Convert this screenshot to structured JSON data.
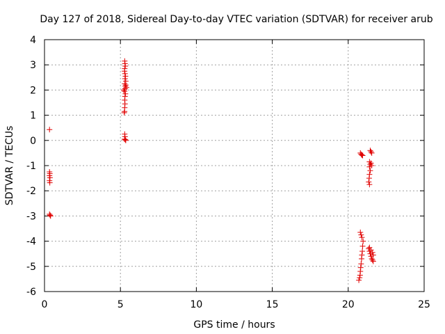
{
  "chart_data": {
    "type": "scatter",
    "title": "Day 127 of 2018, Sidereal Day-to-day VTEC variation (SDTVAR) for receiver arub",
    "xlabel": "GPS time / hours",
    "ylabel": "SDTVAR / TECUs",
    "xlim": [
      0,
      25
    ],
    "ylim": [
      -6,
      4
    ],
    "xticks": [
      "0",
      "5",
      "10",
      "15",
      "20",
      "25"
    ],
    "yticks": [
      "-6",
      "-5",
      "-4",
      "-3",
      "-2",
      "-1",
      "0",
      "1",
      "2",
      "3",
      "4"
    ],
    "grid": true,
    "marker": "+",
    "color": "#e00000",
    "series": [
      {
        "name": "SDTVAR",
        "points": [
          [
            0.33,
            0.43
          ],
          [
            0.33,
            -1.25
          ],
          [
            0.35,
            -1.32
          ],
          [
            0.33,
            -1.4
          ],
          [
            0.36,
            -1.48
          ],
          [
            0.33,
            -1.6
          ],
          [
            0.35,
            -1.68
          ],
          [
            0.33,
            -2.93
          ],
          [
            0.37,
            -2.97
          ],
          [
            0.4,
            -3.0
          ],
          [
            5.28,
            3.15
          ],
          [
            5.3,
            3.05
          ],
          [
            5.32,
            2.95
          ],
          [
            5.28,
            2.85
          ],
          [
            5.27,
            2.75
          ],
          [
            5.3,
            2.65
          ],
          [
            5.33,
            2.55
          ],
          [
            5.3,
            2.45
          ],
          [
            5.35,
            2.35
          ],
          [
            5.28,
            2.25
          ],
          [
            5.32,
            2.15
          ],
          [
            5.3,
            2.05
          ],
          [
            5.27,
            1.95
          ],
          [
            5.33,
            1.85
          ],
          [
            5.3,
            1.75
          ],
          [
            5.28,
            1.6
          ],
          [
            5.3,
            1.45
          ],
          [
            5.28,
            1.3
          ],
          [
            5.27,
            1.15
          ],
          [
            5.25,
            1.1
          ],
          [
            5.35,
            2.2
          ],
          [
            5.4,
            2.1
          ],
          [
            5.22,
            2.0
          ],
          [
            5.28,
            0.25
          ],
          [
            5.3,
            0.15
          ],
          [
            5.27,
            0.05
          ],
          [
            5.32,
            0.03
          ],
          [
            5.35,
            0.0
          ],
          [
            20.8,
            -0.5
          ],
          [
            20.85,
            -0.55
          ],
          [
            20.9,
            -0.58
          ],
          [
            20.95,
            -0.6
          ],
          [
            21.45,
            -0.4
          ],
          [
            21.5,
            -0.45
          ],
          [
            21.55,
            -0.5
          ],
          [
            21.4,
            -0.85
          ],
          [
            21.45,
            -0.95
          ],
          [
            21.4,
            -1.05
          ],
          [
            21.45,
            -1.2
          ],
          [
            21.4,
            -1.35
          ],
          [
            21.38,
            -1.5
          ],
          [
            21.35,
            -1.65
          ],
          [
            21.4,
            -1.75
          ],
          [
            21.5,
            -0.9
          ],
          [
            21.55,
            -1.0
          ],
          [
            20.7,
            -5.55
          ],
          [
            20.75,
            -5.45
          ],
          [
            20.78,
            -5.35
          ],
          [
            20.8,
            -5.2
          ],
          [
            20.82,
            -5.05
          ],
          [
            20.85,
            -4.9
          ],
          [
            20.88,
            -4.7
          ],
          [
            20.9,
            -4.55
          ],
          [
            20.93,
            -4.4
          ],
          [
            20.95,
            -4.2
          ],
          [
            20.98,
            -4.0
          ],
          [
            20.9,
            -3.85
          ],
          [
            20.85,
            -3.75
          ],
          [
            20.8,
            -3.65
          ],
          [
            21.35,
            -4.3
          ],
          [
            21.4,
            -4.4
          ],
          [
            21.45,
            -4.5
          ],
          [
            21.5,
            -4.6
          ],
          [
            21.55,
            -4.7
          ],
          [
            21.6,
            -4.75
          ],
          [
            21.65,
            -4.8
          ],
          [
            21.4,
            -4.25
          ],
          [
            21.5,
            -4.35
          ],
          [
            21.6,
            -4.45
          ],
          [
            21.65,
            -4.55
          ]
        ]
      }
    ]
  }
}
